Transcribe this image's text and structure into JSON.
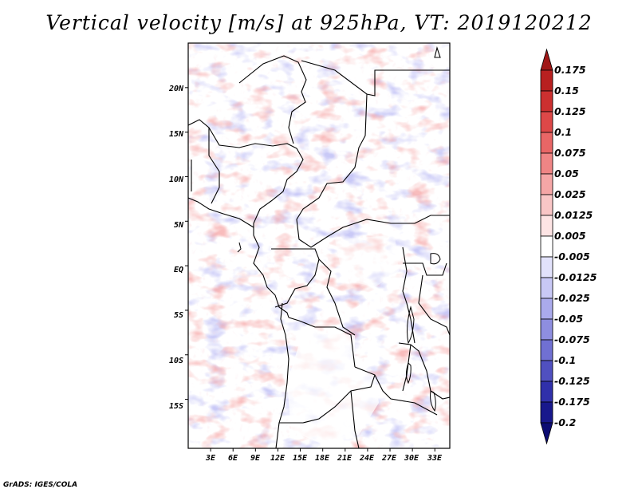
{
  "title": "Vertical velocity [m/s] at 925hPa, VT: 2019120212",
  "footer": "GrADS: IGES/COLA",
  "map": {
    "lon_range": [
      0,
      35
    ],
    "lat_range": [
      -20.5,
      25
    ],
    "lon_ticks": [
      "3E",
      "6E",
      "9E",
      "12E",
      "15E",
      "18E",
      "21E",
      "24E",
      "27E",
      "30E",
      "33E"
    ],
    "lat_ticks": [
      "20N",
      "15N",
      "10N",
      "5N",
      "EQ",
      "5S",
      "10S",
      "15S"
    ],
    "colors": {
      "frame": "#000000",
      "border": "#000000"
    }
  },
  "colorbar": {
    "labels": [
      "0.175",
      "0.15",
      "0.125",
      "0.1",
      "0.075",
      "0.05",
      "0.025",
      "0.0125",
      "0.005",
      "-0.005",
      "-0.0125",
      "-0.025",
      "-0.05",
      "-0.075",
      "-0.1",
      "-0.125",
      "-0.175",
      "-0.2"
    ],
    "colors": [
      "#a01818",
      "#b82020",
      "#cc3030",
      "#dd4848",
      "#e86666",
      "#ef8585",
      "#f5a6a6",
      "#f9c6c6",
      "#fde4e4",
      "#ffffff",
      "#e2e2fb",
      "#c8c8f5",
      "#aaaaec",
      "#8e8ee0",
      "#7070d2",
      "#5050c0",
      "#3030aa",
      "#18188c",
      "#0c0c72"
    ]
  }
}
